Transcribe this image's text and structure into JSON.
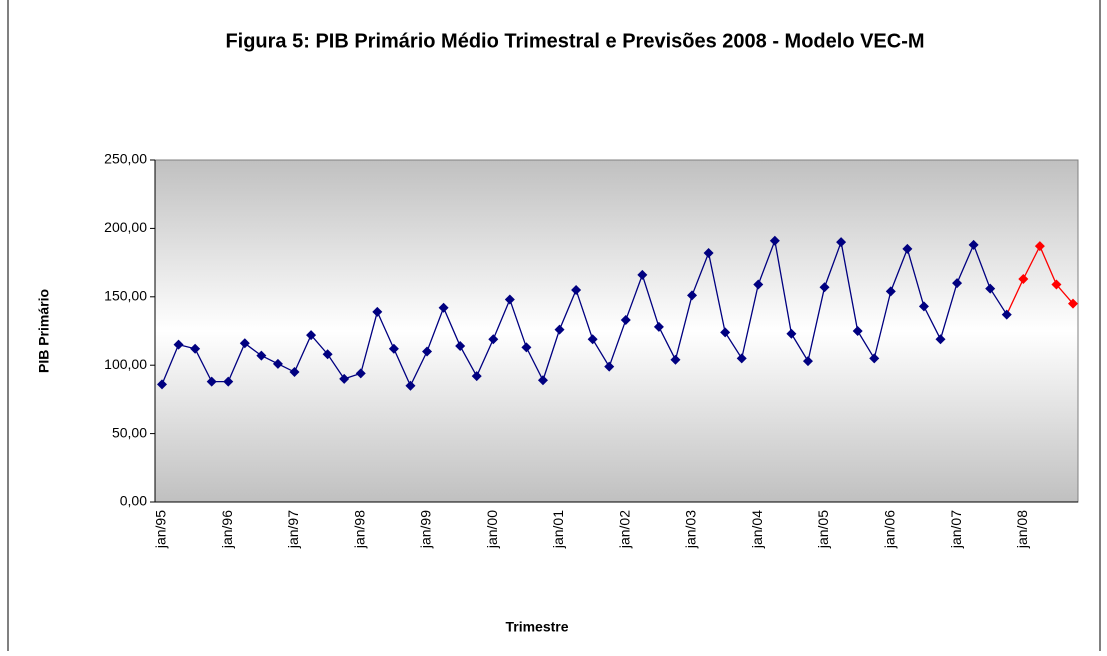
{
  "chart_data": {
    "type": "line",
    "title": "Figura 5: PIB Primário Médio Trimestral e Previsões 2008 - Modelo VEC-M",
    "y_label": "PIB Primário",
    "x_label": "Trimestre",
    "categories": [
      "jan/95",
      null,
      null,
      null,
      "jan/96",
      null,
      null,
      null,
      "jan/97",
      null,
      null,
      null,
      "jan/98",
      null,
      null,
      null,
      "jan/99",
      null,
      null,
      null,
      "jan/00",
      null,
      null,
      null,
      "jan/01",
      null,
      null,
      null,
      "jan/02",
      null,
      null,
      null,
      "jan/03",
      null,
      null,
      null,
      "jan/04",
      null,
      null,
      null,
      "jan/05",
      null,
      null,
      null,
      "jan/06",
      null,
      null,
      null,
      "jan/07",
      null,
      null,
      null,
      "jan/08",
      null,
      null,
      null
    ],
    "series": [
      {
        "color": "#000080",
        "values": [
          86,
          115,
          112,
          88,
          88,
          116,
          107,
          101,
          95,
          122,
          108,
          90,
          94,
          139,
          112,
          85,
          110,
          142,
          114,
          92,
          119,
          148,
          113,
          89,
          126,
          155,
          119,
          99,
          133,
          166,
          128,
          104,
          151,
          182,
          124,
          105,
          159,
          191,
          123,
          103,
          157,
          190,
          125,
          105,
          154,
          185,
          143,
          119,
          160,
          188,
          156,
          137,
          null,
          null,
          null,
          null
        ]
      },
      {
        "color": "#ff0000",
        "values": [
          null,
          null,
          null,
          null,
          null,
          null,
          null,
          null,
          null,
          null,
          null,
          null,
          null,
          null,
          null,
          null,
          null,
          null,
          null,
          null,
          null,
          null,
          null,
          null,
          null,
          null,
          null,
          null,
          null,
          null,
          null,
          null,
          null,
          null,
          null,
          null,
          null,
          null,
          null,
          null,
          null,
          null,
          null,
          null,
          null,
          null,
          null,
          null,
          null,
          null,
          null,
          null,
          163,
          187,
          159,
          145
        ]
      }
    ],
    "ylim": [
      0,
      250
    ],
    "yticks": [
      {
        "value": 0,
        "label": "0,00"
      },
      {
        "value": 50,
        "label": "50,00"
      },
      {
        "value": 100,
        "label": "100,00"
      },
      {
        "value": 150,
        "label": "150,00"
      },
      {
        "value": 200,
        "label": "200,00"
      },
      {
        "value": 250,
        "label": "250,00"
      }
    ]
  }
}
